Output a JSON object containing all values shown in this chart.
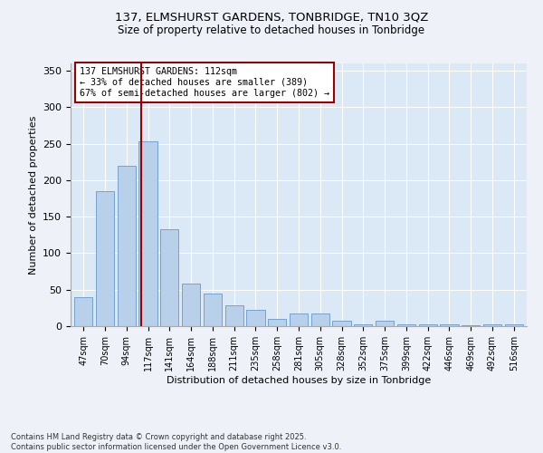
{
  "title_line1": "137, ELMSHURST GARDENS, TONBRIDGE, TN10 3QZ",
  "title_line2": "Size of property relative to detached houses in Tonbridge",
  "xlabel": "Distribution of detached houses by size in Tonbridge",
  "ylabel": "Number of detached properties",
  "categories": [
    "47sqm",
    "70sqm",
    "94sqm",
    "117sqm",
    "141sqm",
    "164sqm",
    "188sqm",
    "211sqm",
    "235sqm",
    "258sqm",
    "281sqm",
    "305sqm",
    "328sqm",
    "352sqm",
    "375sqm",
    "399sqm",
    "422sqm",
    "446sqm",
    "469sqm",
    "492sqm",
    "516sqm"
  ],
  "values": [
    40,
    185,
    220,
    253,
    133,
    58,
    45,
    28,
    22,
    10,
    18,
    18,
    8,
    3,
    8,
    3,
    3,
    3,
    1,
    3,
    3
  ],
  "bar_color": "#b8d0ea",
  "bar_edge_color": "#6699cc",
  "vline_color": "#990000",
  "vline_pos": 2.68,
  "annotation_title": "137 ELMSHURST GARDENS: 112sqm",
  "annotation_line1": "← 33% of detached houses are smaller (389)",
  "annotation_line2": "67% of semi-detached houses are larger (802) →",
  "ylim": [
    0,
    360
  ],
  "yticks": [
    0,
    50,
    100,
    150,
    200,
    250,
    300,
    350
  ],
  "footer_line1": "Contains HM Land Registry data © Crown copyright and database right 2025.",
  "footer_line2": "Contains public sector information licensed under the Open Government Licence v3.0.",
  "background_color": "#eef2f8",
  "plot_bg_color": "#dbe8f5"
}
